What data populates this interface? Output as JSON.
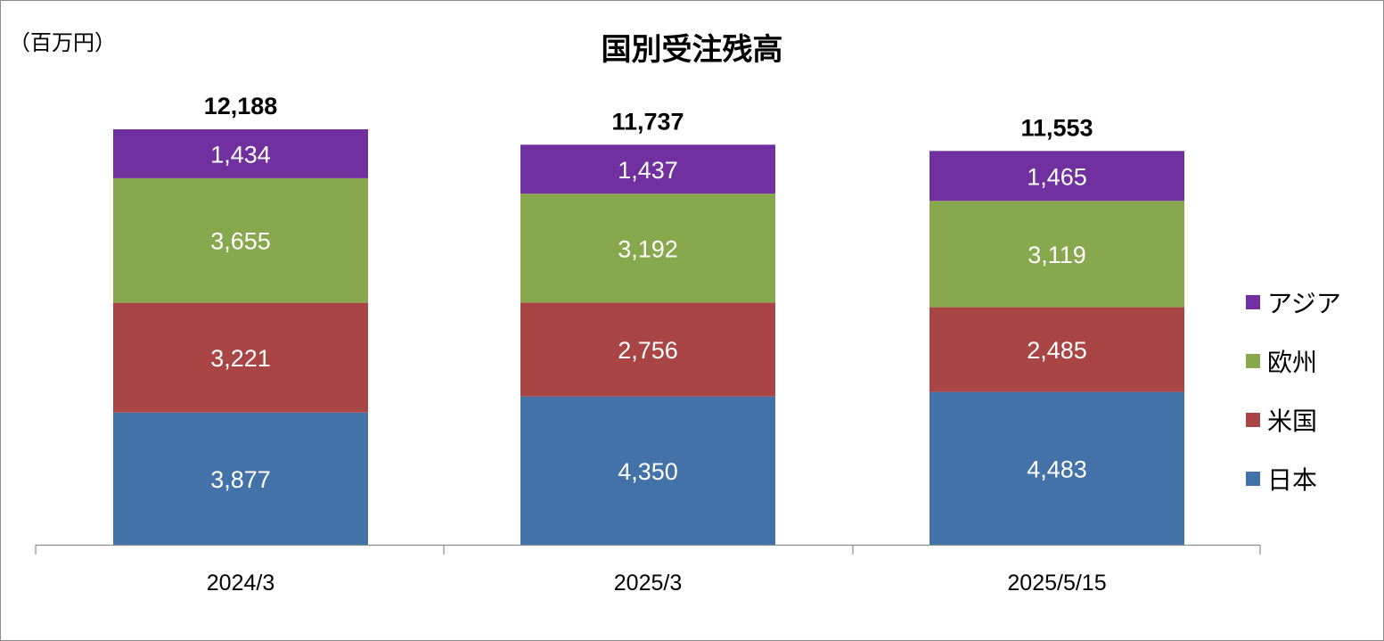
{
  "unit_label": "（百万円）",
  "chart_data": {
    "type": "bar",
    "stacked": true,
    "title": "国別受注残高",
    "categories": [
      "2024/3",
      "2025/3",
      "2025/5/15"
    ],
    "totals": [
      "12,188",
      "11,737",
      "11,553"
    ],
    "series": [
      {
        "name": "日本",
        "color": "#4372a8",
        "values": [
          3877,
          4350,
          4483
        ],
        "labels": [
          "3,877",
          "4,350",
          "4,483"
        ]
      },
      {
        "name": "米国",
        "color": "#a94544",
        "values": [
          3221,
          2756,
          2485
        ],
        "labels": [
          "3,221",
          "2,756",
          "2,485"
        ]
      },
      {
        "name": "欧州",
        "color": "#88a84e",
        "values": [
          3655,
          3192,
          3119
        ],
        "labels": [
          "3,655",
          "3,192",
          "3,119"
        ]
      },
      {
        "name": "アジア",
        "color": "#7030a0",
        "values": [
          1434,
          1437,
          1465
        ],
        "labels": [
          "1,434",
          "1,437",
          "1,465"
        ]
      }
    ],
    "legend_position": "right",
    "grid": false
  }
}
